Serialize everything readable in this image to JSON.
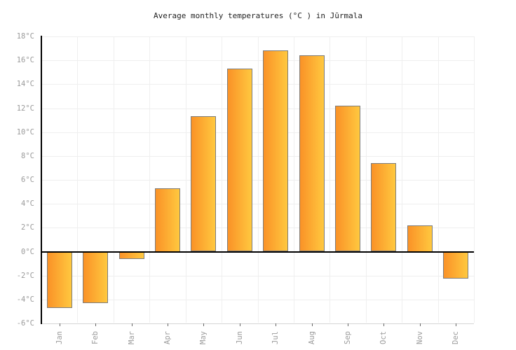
{
  "chart_data": {
    "type": "bar",
    "title": "Average monthly temperatures (°C ) in Jūrmala",
    "categories": [
      "Jan",
      "Feb",
      "Mar",
      "Apr",
      "May",
      "Jun",
      "Jul",
      "Aug",
      "Sep",
      "Oct",
      "Nov",
      "Dec"
    ],
    "values": [
      -4.7,
      -4.3,
      -0.6,
      5.3,
      11.3,
      15.3,
      16.8,
      16.4,
      12.2,
      7.4,
      2.2,
      -2.2
    ],
    "xlabel": "",
    "ylabel": "",
    "ylim": [
      -6,
      18
    ],
    "ytick_step": 2,
    "ytick_labels": [
      "18°C",
      "16°C",
      "14°C",
      "12°C",
      "10°C",
      "8°C",
      "6°C",
      "4°C",
      "2°C",
      "0°C",
      "-2°C",
      "-4°C",
      "-6°C"
    ],
    "grid": true,
    "legend": "none",
    "colors": {
      "title": "#222222",
      "label": "#9b9b9b",
      "grid": "#efefef",
      "frame": "#d5d5d5",
      "axis": "#000000",
      "tick": "#666666",
      "bar_left": "#fa9227",
      "bar_right": "#ffc83f",
      "bar_border": "#7d7d7d"
    }
  }
}
